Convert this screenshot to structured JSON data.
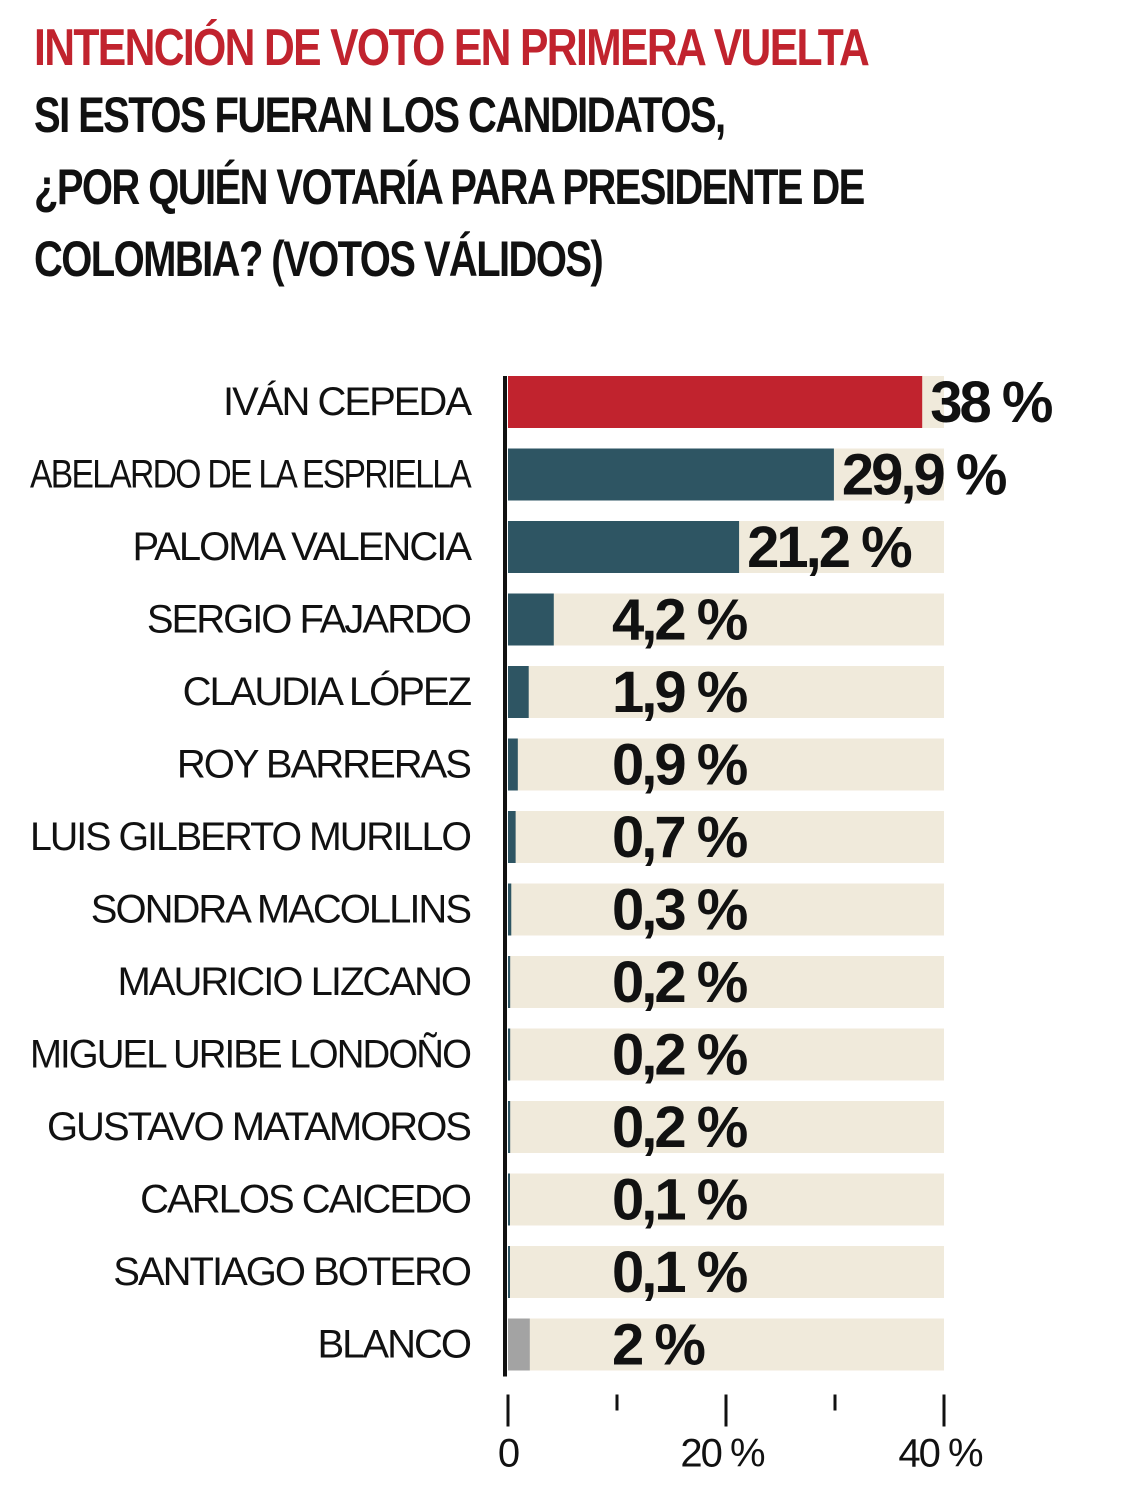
{
  "title": "INTENCIÓN DE VOTO EN PRIMERA VUELTA",
  "subtitle_lines": [
    "SI ESTOS FUERAN LOS CANDIDATOS,",
    "¿POR QUIÉN VOTARÍA PARA PRESIDENTE DE",
    "COLOMBIA? (VOTOS VÁLIDOS)"
  ],
  "colors": {
    "title_red": "#c1232e",
    "leader_bar": "#c1232e",
    "candidate_bar": "#2e5563",
    "blank_bar": "#a3a3a3",
    "track": "#f0eadb",
    "text": "#111111"
  },
  "chart_data": {
    "type": "bar",
    "orientation": "horizontal",
    "xlim": [
      0,
      40
    ],
    "xticks": [
      0,
      10,
      20,
      30,
      40
    ],
    "xtick_labels": [
      "0",
      "",
      "20 %",
      "",
      "40 %"
    ],
    "categories": [
      "IVÁN CEPEDA",
      "ABELARDO DE LA ESPRIELLA",
      "PALOMA VALENCIA",
      "SERGIO FAJARDO",
      "CLAUDIA LÓPEZ",
      "ROY BARRERAS",
      "LUIS GILBERTO MURILLO",
      "SONDRA MACOLLINS",
      "MAURICIO LIZCANO",
      "MIGUEL URIBE LONDOÑO",
      "GUSTAVO MATAMOROS",
      "CARLOS CAICEDO",
      "SANTIAGO BOTERO",
      "BLANCO"
    ],
    "values": [
      38,
      29.9,
      21.2,
      4.2,
      1.9,
      0.9,
      0.7,
      0.3,
      0.2,
      0.2,
      0.2,
      0.1,
      0.1,
      2
    ],
    "value_labels": [
      "38 %",
      "29,9 %",
      "21,2 %",
      "4,2 %",
      "1,9 %",
      "0,9 %",
      "0,7 %",
      "0,3 %",
      "0,2 %",
      "0,2 %",
      "0,2 %",
      "0,1 %",
      "0,1 %",
      "2 %"
    ],
    "bar_colors": [
      "#c1232e",
      "#2e5563",
      "#2e5563",
      "#2e5563",
      "#2e5563",
      "#2e5563",
      "#2e5563",
      "#2e5563",
      "#2e5563",
      "#2e5563",
      "#2e5563",
      "#2e5563",
      "#2e5563",
      "#a3a3a3"
    ],
    "grid": false,
    "legend": false
  }
}
